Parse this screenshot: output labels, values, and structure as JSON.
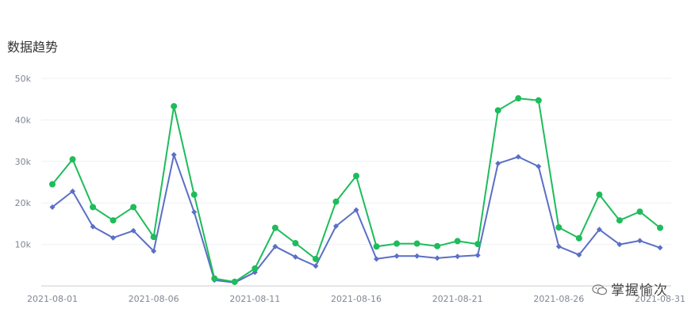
{
  "page_title": "数据趋势",
  "watermark": "掌握愉次",
  "colors": {
    "series1": "#1ebc5b",
    "series2": "#5b6fc6",
    "grid": "#eef0f3",
    "axis": "#cccccc"
  },
  "chart_data": {
    "type": "line",
    "title": "数据趋势",
    "xlabel": "",
    "ylabel": "",
    "ylim": [
      0,
      50000
    ],
    "yticks": [
      10000,
      20000,
      30000,
      40000,
      50000
    ],
    "ytick_labels": [
      "10k",
      "20k",
      "30k",
      "40k",
      "50k"
    ],
    "grid": true,
    "x": [
      "2021-08-01",
      "2021-08-02",
      "2021-08-03",
      "2021-08-04",
      "2021-08-05",
      "2021-08-06",
      "2021-08-07",
      "2021-08-08",
      "2021-08-09",
      "2021-08-10",
      "2021-08-11",
      "2021-08-12",
      "2021-08-13",
      "2021-08-14",
      "2021-08-15",
      "2021-08-16",
      "2021-08-17",
      "2021-08-18",
      "2021-08-19",
      "2021-08-20",
      "2021-08-21",
      "2021-08-22",
      "2021-08-23",
      "2021-08-24",
      "2021-08-25",
      "2021-08-26",
      "2021-08-27",
      "2021-08-28",
      "2021-08-29",
      "2021-08-30",
      "2021-08-31"
    ],
    "xtick_labels": [
      "2021-08-01",
      "2021-08-06",
      "2021-08-11",
      "2021-08-16",
      "2021-08-21",
      "2021-08-26",
      "2021-08-31"
    ],
    "series": [
      {
        "values": [
          24500,
          30500,
          19000,
          15800,
          19000,
          11800,
          43300,
          22000,
          1800,
          1000,
          4200,
          14000,
          10300,
          6500,
          20300,
          26500,
          9500,
          10200,
          10200,
          9600,
          10800,
          10100,
          42300,
          45200,
          44700,
          14100,
          11500,
          22000,
          15800,
          17900,
          14000
        ]
      },
      {
        "values": [
          19000,
          22800,
          14300,
          11600,
          13300,
          8400,
          31600,
          17800,
          1400,
          800,
          3300,
          9500,
          7000,
          4800,
          14400,
          18300,
          6500,
          7200,
          7200,
          6700,
          7100,
          7400,
          29500,
          31100,
          28800,
          9500,
          7500,
          13600,
          10000,
          10900,
          9200
        ]
      }
    ]
  }
}
